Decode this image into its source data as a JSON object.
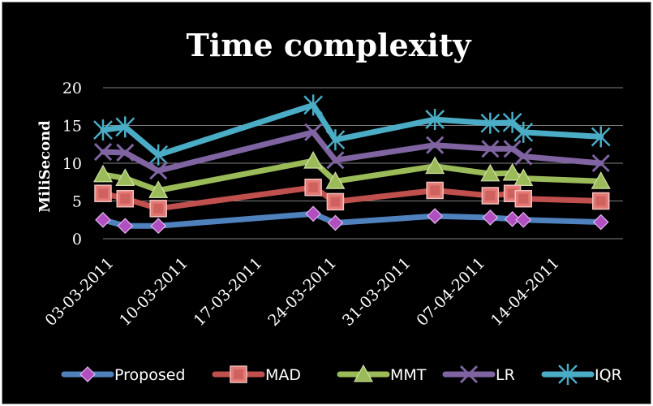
{
  "chart_data": {
    "type": "line",
    "title": "Time complexity",
    "xlabel": "",
    "ylabel": "MiliSecond",
    "ylim": [
      0,
      20
    ],
    "yticks": [
      0,
      5,
      10,
      15,
      20
    ],
    "grid": true,
    "legend_position": "bottom",
    "x_tick_labels": [
      "03-03-2011",
      "10-03-2011",
      "17-03-2011",
      "24-03-2011",
      "31-03-2011",
      "07-04-2011",
      "14-04-2011"
    ],
    "x_dates": [
      "2011-03-03",
      "2011-03-05",
      "2011-03-08",
      "2011-03-22",
      "2011-03-24",
      "2011-04-02",
      "2011-04-07",
      "2011-04-09",
      "2011-04-10",
      "2011-04-17"
    ],
    "series": [
      {
        "name": "Proposed",
        "color": "#4f81bd",
        "marker": "diamond",
        "marker_color": "#b04fc0",
        "values": [
          2.5,
          1.7,
          1.7,
          3.3,
          2.1,
          3.0,
          2.8,
          2.6,
          2.5,
          2.2
        ]
      },
      {
        "name": "MAD",
        "color": "#c0504d",
        "marker": "square",
        "marker_color": "#e37975",
        "values": [
          6.0,
          5.3,
          4.0,
          6.8,
          4.9,
          6.4,
          5.7,
          6.0,
          5.3,
          5.0
        ]
      },
      {
        "name": "MMT",
        "color": "#9bbb59",
        "marker": "triangle",
        "marker_color": "#9bbb59",
        "values": [
          8.5,
          8.0,
          6.4,
          10.3,
          7.6,
          9.6,
          8.6,
          8.7,
          8.0,
          7.6
        ]
      },
      {
        "name": "LR",
        "color": "#8064a2",
        "marker": "x",
        "marker_color": "#8064a2",
        "values": [
          11.5,
          11.4,
          9.0,
          14.1,
          10.4,
          12.4,
          11.9,
          11.9,
          10.9,
          10.0
        ]
      },
      {
        "name": "IQR",
        "color": "#4bacc6",
        "marker": "star",
        "marker_color": "#4bacc6",
        "values": [
          14.4,
          14.8,
          11.1,
          17.7,
          13.1,
          15.8,
          15.3,
          15.4,
          14.1,
          13.5
        ]
      }
    ]
  }
}
